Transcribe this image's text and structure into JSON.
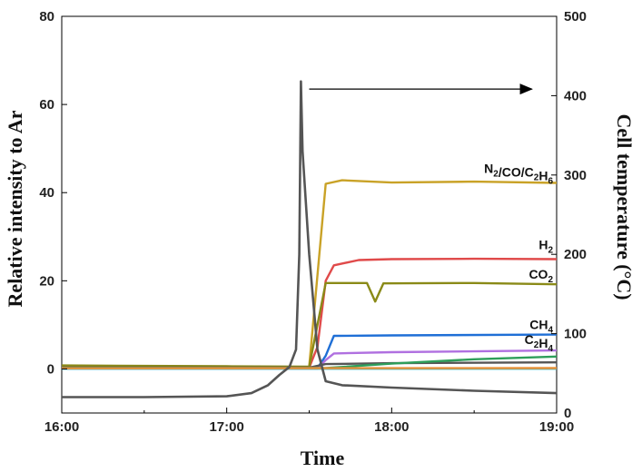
{
  "chart_data": {
    "type": "line",
    "xlabel": "Time",
    "ylabel_left": "Relative intensity to Ar",
    "ylabel_right": "Cell temperature (°C)",
    "x_ticks": [
      "16:00",
      "17:00",
      "18:00",
      "19:00"
    ],
    "x_range_hours": [
      16.0,
      19.0
    ],
    "ylim_left": [
      -10,
      80
    ],
    "y_ticks_left": [
      0,
      20,
      40,
      60,
      80
    ],
    "ylim_right": [
      0,
      500
    ],
    "y_ticks_right": [
      0,
      100,
      200,
      300,
      400,
      500
    ],
    "grid": false,
    "arrow_annotation": {
      "from_hour": 17.5,
      "to_hour": 18.85,
      "at_left_value": 63.5,
      "points_to": "right-axis"
    },
    "series": [
      {
        "label": "N2/CO/C2H6",
        "label_parts": [
          [
            "N",
            ""
          ],
          [
            "2",
            "sub"
          ],
          [
            "/CO/C",
            ""
          ],
          [
            "2",
            "sub"
          ],
          [
            "H",
            ""
          ],
          [
            "6",
            "sub"
          ]
        ],
        "color": "#c9a227",
        "axis": "left",
        "x": [
          16.0,
          17.0,
          17.45,
          17.5,
          17.6,
          17.7,
          18.0,
          18.5,
          19.0
        ],
        "y": [
          0.5,
          0.3,
          0.2,
          0.5,
          42.0,
          42.8,
          42.3,
          42.5,
          42.2
        ]
      },
      {
        "label": "H2",
        "label_parts": [
          [
            "H",
            ""
          ],
          [
            "2",
            "sub"
          ]
        ],
        "color": "#e04a4a",
        "axis": "left",
        "x": [
          16.0,
          17.0,
          17.5,
          17.55,
          17.6,
          17.65,
          17.8,
          18.0,
          18.5,
          19.0
        ],
        "y": [
          0.3,
          0.3,
          0.3,
          5.0,
          20.0,
          23.5,
          24.7,
          24.9,
          25.0,
          24.9
        ]
      },
      {
        "label": "CO2",
        "label_parts": [
          [
            "CO",
            ""
          ],
          [
            "2",
            "sub"
          ]
        ],
        "color": "#8a8a17",
        "axis": "left",
        "x": [
          16.0,
          17.0,
          17.5,
          17.55,
          17.6,
          17.85,
          17.9,
          17.95,
          18.5,
          19.0
        ],
        "y": [
          0.8,
          0.6,
          0.5,
          10.0,
          19.5,
          19.5,
          15.3,
          19.4,
          19.5,
          19.2
        ]
      },
      {
        "label": "CH4",
        "label_parts": [
          [
            "CH",
            ""
          ],
          [
            "4",
            "sub"
          ]
        ],
        "color": "#1f6fd6",
        "axis": "left",
        "x": [
          16.0,
          17.0,
          17.55,
          17.6,
          17.65,
          18.0,
          19.0
        ],
        "y": [
          0.2,
          0.2,
          0.2,
          3.0,
          7.5,
          7.6,
          7.8
        ]
      },
      {
        "label": "C2H4",
        "label_parts": [
          [
            "C",
            ""
          ],
          [
            "2",
            "sub"
          ],
          [
            "H",
            ""
          ],
          [
            "4",
            "sub"
          ]
        ],
        "color": "#b070e0",
        "axis": "left",
        "x": [
          16.0,
          17.0,
          17.55,
          17.6,
          17.65,
          18.0,
          19.0
        ],
        "y": [
          0.1,
          0.1,
          0.1,
          2.0,
          3.5,
          3.8,
          4.2
        ]
      },
      {
        "label": "",
        "color": "#555555",
        "axis": "left",
        "x": [
          16.0,
          17.5,
          17.6,
          18.0,
          19.0
        ],
        "y": [
          0.3,
          0.3,
          1.1,
          1.3,
          1.5
        ]
      },
      {
        "label": "",
        "color": "#2e9e5a",
        "axis": "left",
        "x": [
          16.0,
          17.6,
          18.0,
          18.5,
          19.0
        ],
        "y": [
          0.2,
          0.2,
          1.2,
          2.2,
          2.8
        ]
      },
      {
        "label": "",
        "color": "#29b3c4",
        "axis": "left",
        "x": [
          16.0,
          19.0
        ],
        "y": [
          0.05,
          0.05
        ]
      },
      {
        "label": "",
        "color": "#e8923a",
        "axis": "left",
        "x": [
          16.0,
          19.0
        ],
        "y": [
          0.15,
          0.2
        ]
      },
      {
        "label": "",
        "color": "#555555",
        "axis": "right",
        "x": [
          16.0,
          16.5,
          17.0,
          17.15,
          17.25,
          17.32,
          17.38,
          17.42,
          17.44,
          17.45,
          17.46,
          17.5,
          17.55,
          17.6,
          17.7,
          18.0,
          18.5,
          19.0
        ],
        "y": [
          20,
          20,
          21,
          25,
          35,
          48,
          58,
          80,
          200,
          418,
          330,
          200,
          80,
          40,
          35,
          32,
          28,
          25
        ]
      }
    ]
  }
}
